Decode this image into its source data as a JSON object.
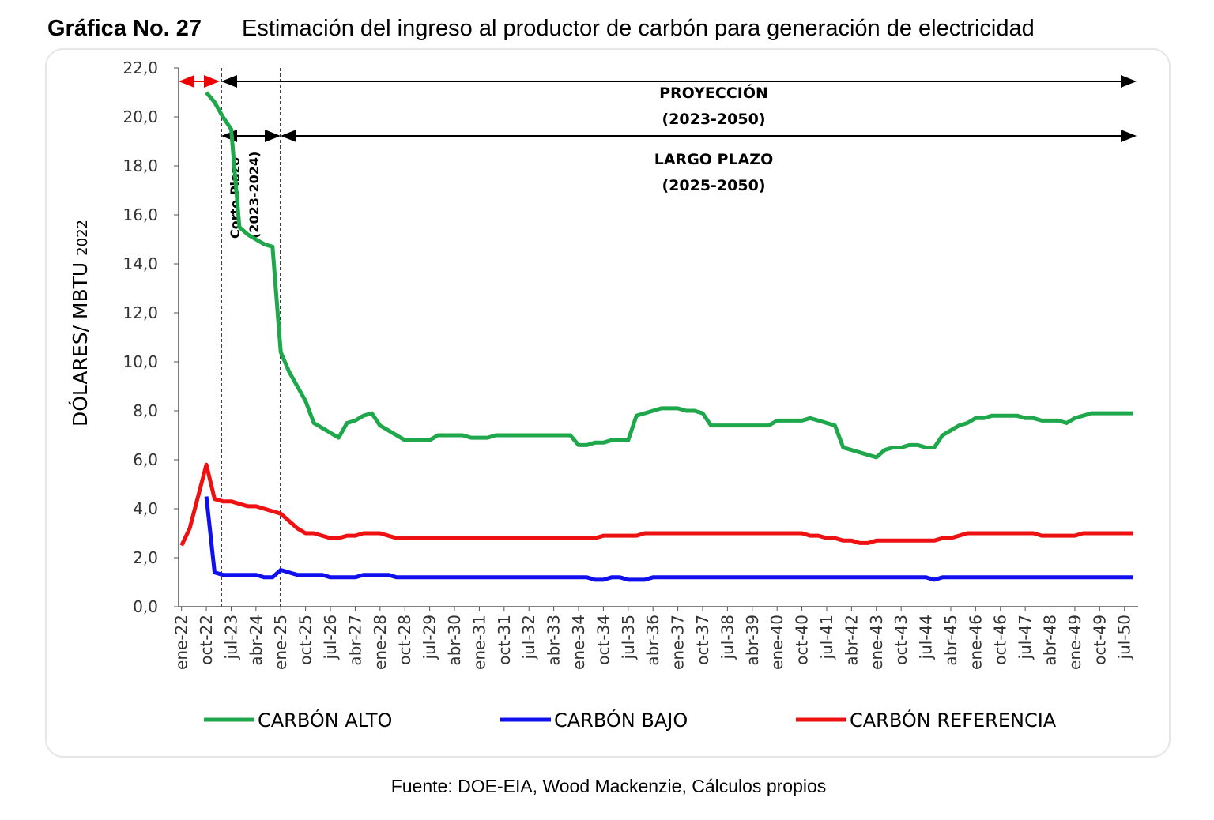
{
  "chart_data": {
    "type": "line",
    "title_number": "Gráfica No. 27",
    "title": "Estimación del ingreso al productor de carbón para generación de electricidad",
    "y_label": "DÓLARES/ MBTU",
    "y_label_unit": "2022",
    "source": "Fuente: DOE-EIA, Wood Mackenzie, Cálculos propios",
    "annotations": [
      "PROYECCIÓN",
      "(2023-2050)",
      "LARGO PLAZO",
      "(2025-2050)",
      "Corto Plazo",
      "(2023-2024)"
    ],
    "categories": [
      "ene-22",
      null,
      null,
      "oct-22",
      null,
      null,
      "jul-23",
      null,
      null,
      "abr-24",
      null,
      null,
      "ene-25",
      null,
      null,
      "oct-25",
      null,
      null,
      "jul-26",
      null,
      null,
      "abr-27",
      null,
      null,
      "ene-28",
      null,
      null,
      "oct-28",
      null,
      null,
      "jul-29",
      null,
      null,
      "abr-30",
      null,
      null,
      "ene-31",
      null,
      null,
      "oct-31",
      null,
      null,
      "jul-32",
      null,
      null,
      "abr-33",
      null,
      null,
      "ene-34",
      null,
      null,
      "oct-34",
      null,
      null,
      "jul-35",
      null,
      null,
      "abr-36",
      null,
      null,
      "ene-37",
      null,
      null,
      "oct-37",
      null,
      null,
      "jul-38",
      null,
      null,
      "abr-39",
      null,
      null,
      "ene-40",
      null,
      null,
      "oct-40",
      null,
      null,
      "jul-41",
      null,
      null,
      "abr-42",
      null,
      null,
      "ene-43",
      null,
      null,
      "oct-43",
      null,
      null,
      "jul-44",
      null,
      null,
      "abr-45",
      null,
      null,
      "ene-46",
      null,
      null,
      "oct-46",
      null,
      null,
      "jul-47",
      null,
      null,
      "abr-48",
      null,
      null,
      "ene-49",
      null,
      null,
      "oct-49",
      null,
      null,
      "jul-50",
      null
    ],
    "series": [
      {
        "name": "CARBÓN ALTO",
        "color": "#1ea84b",
        "values": [
          null,
          null,
          null,
          21.0,
          20.6,
          20.0,
          19.5,
          15.5,
          15.2,
          15.0,
          14.8,
          14.7,
          10.4,
          9.6,
          9.0,
          8.4,
          7.5,
          7.3,
          7.1,
          6.9,
          7.5,
          7.6,
          7.8,
          7.9,
          7.4,
          7.2,
          7.0,
          6.8,
          6.8,
          6.8,
          6.8,
          7.0,
          7.0,
          7.0,
          7.0,
          6.9,
          6.9,
          6.9,
          7.0,
          7.0,
          7.0,
          7.0,
          7.0,
          7.0,
          7.0,
          7.0,
          7.0,
          7.0,
          6.6,
          6.6,
          6.7,
          6.7,
          6.8,
          6.8,
          6.8,
          7.8,
          7.9,
          8.0,
          8.1,
          8.1,
          8.1,
          8.0,
          8.0,
          7.9,
          7.4,
          7.4,
          7.4,
          7.4,
          7.4,
          7.4,
          7.4,
          7.4,
          7.6,
          7.6,
          7.6,
          7.6,
          7.7,
          7.6,
          7.5,
          7.4,
          6.5,
          6.4,
          6.3,
          6.2,
          6.1,
          6.4,
          6.5,
          6.5,
          6.6,
          6.6,
          6.5,
          6.5,
          7.0,
          7.2,
          7.4,
          7.5,
          7.7,
          7.7,
          7.8,
          7.8,
          7.8,
          7.8,
          7.7,
          7.7,
          7.6,
          7.6,
          7.6,
          7.5,
          7.7,
          7.8,
          7.9,
          7.9,
          7.9,
          7.9,
          7.9,
          7.9
        ]
      },
      {
        "name": "CARBÓN BAJO",
        "color": "#1010ee",
        "values": [
          null,
          null,
          null,
          4.5,
          1.4,
          1.3,
          1.3,
          1.3,
          1.3,
          1.3,
          1.2,
          1.2,
          1.5,
          1.4,
          1.3,
          1.3,
          1.3,
          1.3,
          1.2,
          1.2,
          1.2,
          1.2,
          1.3,
          1.3,
          1.3,
          1.3,
          1.2,
          1.2,
          1.2,
          1.2,
          1.2,
          1.2,
          1.2,
          1.2,
          1.2,
          1.2,
          1.2,
          1.2,
          1.2,
          1.2,
          1.2,
          1.2,
          1.2,
          1.2,
          1.2,
          1.2,
          1.2,
          1.2,
          1.2,
          1.2,
          1.1,
          1.1,
          1.2,
          1.2,
          1.1,
          1.1,
          1.1,
          1.2,
          1.2,
          1.2,
          1.2,
          1.2,
          1.2,
          1.2,
          1.2,
          1.2,
          1.2,
          1.2,
          1.2,
          1.2,
          1.2,
          1.2,
          1.2,
          1.2,
          1.2,
          1.2,
          1.2,
          1.2,
          1.2,
          1.2,
          1.2,
          1.2,
          1.2,
          1.2,
          1.2,
          1.2,
          1.2,
          1.2,
          1.2,
          1.2,
          1.2,
          1.1,
          1.2,
          1.2,
          1.2,
          1.2,
          1.2,
          1.2,
          1.2,
          1.2,
          1.2,
          1.2,
          1.2,
          1.2,
          1.2,
          1.2,
          1.2,
          1.2,
          1.2,
          1.2,
          1.2,
          1.2,
          1.2,
          1.2,
          1.2,
          1.2
        ]
      },
      {
        "name": "CARBÓN REFERENCIA",
        "color": "#ee1111",
        "values": [
          2.5,
          3.2,
          4.5,
          5.8,
          4.4,
          4.3,
          4.3,
          4.2,
          4.1,
          4.1,
          4.0,
          3.9,
          3.8,
          3.5,
          3.2,
          3.0,
          3.0,
          2.9,
          2.8,
          2.8,
          2.9,
          2.9,
          3.0,
          3.0,
          3.0,
          2.9,
          2.8,
          2.8,
          2.8,
          2.8,
          2.8,
          2.8,
          2.8,
          2.8,
          2.8,
          2.8,
          2.8,
          2.8,
          2.8,
          2.8,
          2.8,
          2.8,
          2.8,
          2.8,
          2.8,
          2.8,
          2.8,
          2.8,
          2.8,
          2.8,
          2.8,
          2.9,
          2.9,
          2.9,
          2.9,
          2.9,
          3.0,
          3.0,
          3.0,
          3.0,
          3.0,
          3.0,
          3.0,
          3.0,
          3.0,
          3.0,
          3.0,
          3.0,
          3.0,
          3.0,
          3.0,
          3.0,
          3.0,
          3.0,
          3.0,
          3.0,
          2.9,
          2.9,
          2.8,
          2.8,
          2.7,
          2.7,
          2.6,
          2.6,
          2.7,
          2.7,
          2.7,
          2.7,
          2.7,
          2.7,
          2.7,
          2.7,
          2.8,
          2.8,
          2.9,
          3.0,
          3.0,
          3.0,
          3.0,
          3.0,
          3.0,
          3.0,
          3.0,
          3.0,
          2.9,
          2.9,
          2.9,
          2.9,
          2.9,
          3.0,
          3.0,
          3.0,
          3.0,
          3.0,
          3.0,
          3.0
        ]
      }
    ],
    "ylim": [
      0,
      22
    ],
    "yticks": [
      {
        "value": 0,
        "label": "0,0"
      },
      {
        "value": 2,
        "label": "2,0"
      },
      {
        "value": 4,
        "label": "4,0"
      },
      {
        "value": 6,
        "label": "6,0"
      },
      {
        "value": 8,
        "label": "8,0"
      },
      {
        "value": 10,
        "label": "10,0"
      },
      {
        "value": 12,
        "label": "12,0"
      },
      {
        "value": 14,
        "label": "14,0"
      },
      {
        "value": 16,
        "label": "16,0"
      },
      {
        "value": 18,
        "label": "18,0"
      },
      {
        "value": 20,
        "label": "20,0"
      },
      {
        "value": 22,
        "label": "22,0"
      }
    ],
    "grid": false,
    "legend": "bottom"
  }
}
